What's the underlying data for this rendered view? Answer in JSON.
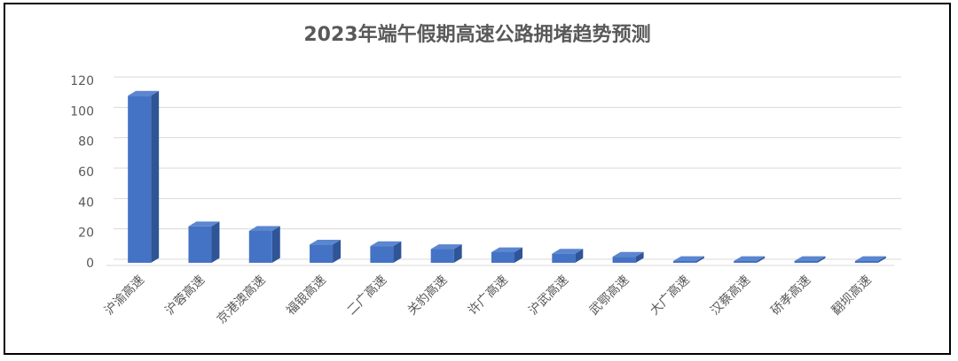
{
  "chart_data": {
    "type": "bar",
    "title": "2023年端午假期高速公路拥堵趋势预测",
    "categories": [
      "沪渝高速",
      "沪蓉高速",
      "京港澳高速",
      "福银高速",
      "二广高速",
      "关豹高速",
      "许广高速",
      "沪武高速",
      "武鄂高速",
      "大广高速",
      "汉蔡高速",
      "硚孝高速",
      "翻坝高速"
    ],
    "values": [
      110,
      24,
      21,
      12,
      11,
      9,
      7,
      6,
      4,
      1,
      1,
      1,
      1
    ],
    "yticks": [
      "0",
      "20",
      "40",
      "60",
      "80",
      "100",
      "120"
    ],
    "ylim": [
      0,
      120
    ],
    "xlabel": "",
    "ylabel": "",
    "grid": true,
    "legend": "none",
    "style_3d": true,
    "colors": {
      "bar_front": "#4472C4",
      "bar_side": "#2F5597",
      "bar_top": "#5B86D0",
      "grid": "#D9D9D9",
      "text": "#595959",
      "frame": "#000000"
    }
  }
}
